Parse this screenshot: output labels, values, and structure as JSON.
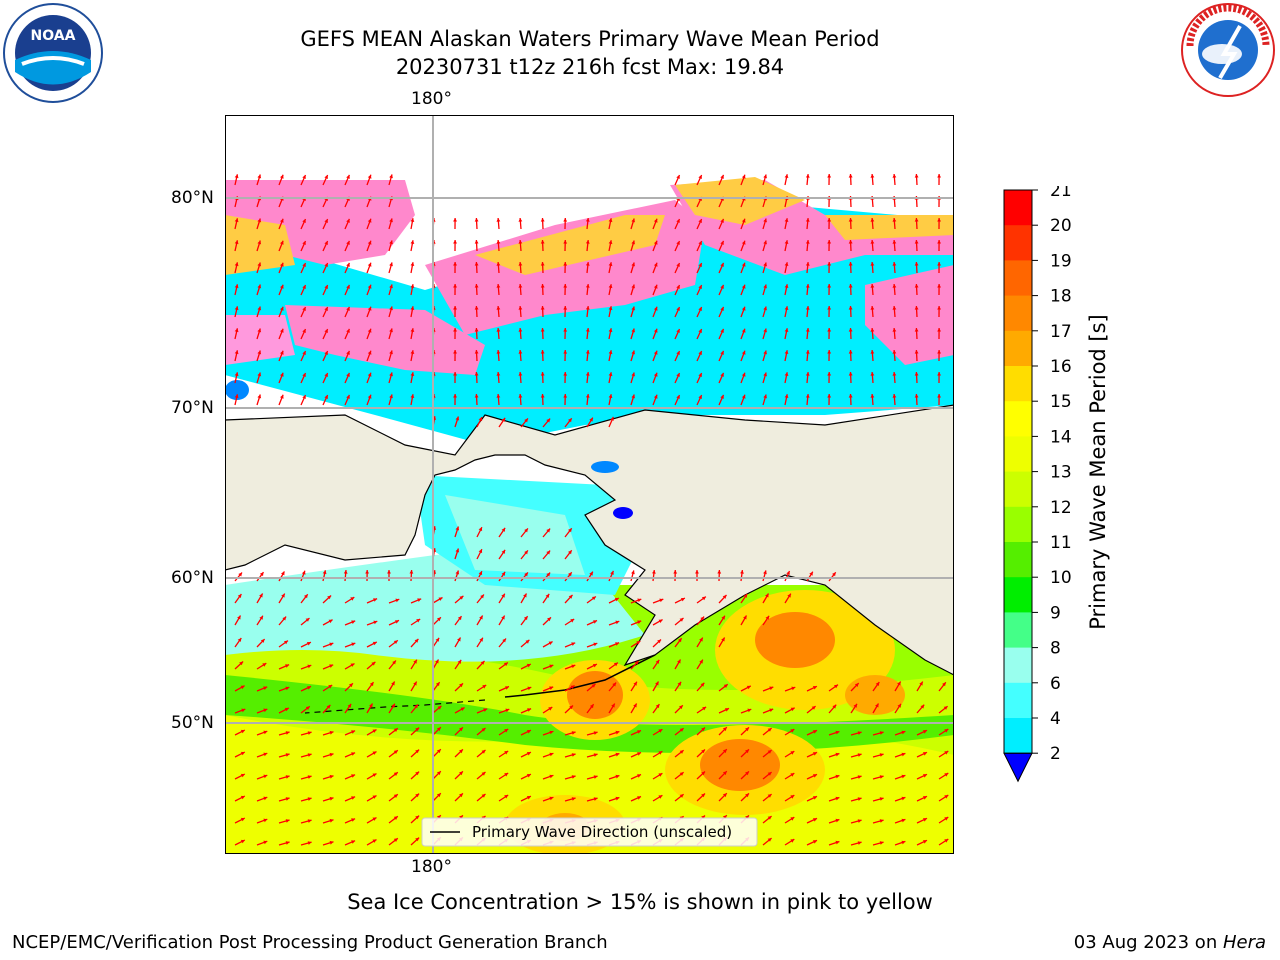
{
  "header": {
    "title_line1": "GEFS MEAN Alaskan Waters Primary Wave Mean Period",
    "title_line2": "20230731 t12z 216h fcst   Max: 19.84"
  },
  "logos": {
    "left": {
      "name": "noaa-logo",
      "text": "NOAA"
    },
    "right": {
      "name": "nws-logo",
      "text": "NATIONAL WEATHER SERVICE"
    }
  },
  "map": {
    "lon_label_top": "180°",
    "lon_label_bottom": "180°",
    "lat_labels": [
      "80°N",
      "70°N",
      "60°N",
      "50°N"
    ],
    "legend_label": "Primary Wave Direction (unscaled)",
    "colors": {
      "land": "#efedde",
      "arrows": "#ff0000",
      "grid": "#b0b0b0"
    }
  },
  "colorbar": {
    "title": "Primary Wave Mean Period [s]",
    "ticks": [
      "21",
      "20",
      "19",
      "18",
      "17",
      "16",
      "15",
      "14",
      "13",
      "12",
      "11",
      "10",
      "9",
      "8",
      "6",
      "4",
      "2"
    ],
    "colors": [
      "#ff0000",
      "#ff3300",
      "#ff6600",
      "#ff8800",
      "#ffaa00",
      "#ffdd00",
      "#ffff00",
      "#eeff00",
      "#ccff00",
      "#99ff00",
      "#55ee00",
      "#00ee00",
      "#44ff88",
      "#99ffee",
      "#44ffff",
      "#00eeff",
      "#0088ff",
      "#0000ff"
    ]
  },
  "caption": "Sea Ice Concentration > 15% is shown in pink to yellow",
  "footer": {
    "left": "NCEP/EMC/Verification Post Processing Product Generation Branch",
    "date": "03 Aug 2023 on ",
    "host": "Hera"
  }
}
